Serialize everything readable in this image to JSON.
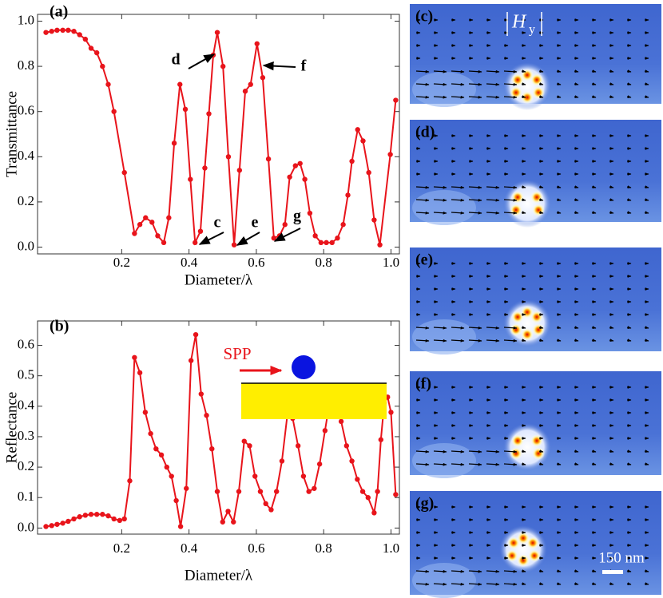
{
  "chart_data": [
    {
      "type": "line",
      "panel_label": "(a)",
      "x_label": "Diameter/λ",
      "y_label": "Transmittance",
      "color": "#e8141b",
      "x": [
        -0.025,
        -0.008,
        0.008,
        0.025,
        0.041,
        0.058,
        0.075,
        0.092,
        0.109,
        0.126,
        0.143,
        0.16,
        0.177,
        0.208,
        0.238,
        0.254,
        0.271,
        0.29,
        0.307,
        0.325,
        0.34,
        0.356,
        0.373,
        0.389,
        0.404,
        0.418,
        0.434,
        0.447,
        0.459,
        0.472,
        0.484,
        0.501,
        0.517,
        0.534,
        0.55,
        0.567,
        0.583,
        0.602,
        0.619,
        0.636,
        0.652,
        0.669,
        0.685,
        0.699,
        0.716,
        0.73,
        0.744,
        0.759,
        0.775,
        0.792,
        0.808,
        0.825,
        0.841,
        0.858,
        0.872,
        0.884,
        0.901,
        0.917,
        0.934,
        0.95,
        0.967,
        0.998,
        1.014
      ],
      "values": [
        0.95,
        0.955,
        0.96,
        0.96,
        0.96,
        0.955,
        0.94,
        0.92,
        0.88,
        0.86,
        0.8,
        0.72,
        0.6,
        0.33,
        0.06,
        0.1,
        0.13,
        0.11,
        0.05,
        0.02,
        0.13,
        0.46,
        0.72,
        0.61,
        0.3,
        0.02,
        0.07,
        0.35,
        0.59,
        0.85,
        0.95,
        0.8,
        0.4,
        0.01,
        0.34,
        0.69,
        0.72,
        0.9,
        0.75,
        0.39,
        0.04,
        0.05,
        0.1,
        0.31,
        0.36,
        0.37,
        0.3,
        0.15,
        0.05,
        0.02,
        0.02,
        0.02,
        0.04,
        0.1,
        0.23,
        0.38,
        0.52,
        0.47,
        0.33,
        0.12,
        0.01,
        0.41,
        0.65
      ],
      "xlim": [
        -0.05,
        1.025
      ],
      "ylim": [
        -0.03,
        1.03
      ],
      "xticks": [
        0.2,
        0.4,
        0.6,
        0.8,
        {
          "value": 1,
          "label": "1.0"
        }
      ],
      "yticks": [
        {
          "value": 0,
          "label": "0.0"
        },
        0.2,
        0.4,
        0.6,
        0.8,
        {
          "value": 1,
          "label": "1.0"
        }
      ],
      "annotations": [
        "d",
        "f",
        "c",
        "e",
        "g"
      ]
    },
    {
      "type": "line",
      "panel_label": "(b)",
      "x_label": "Diameter/λ",
      "y_label": "Reflectance",
      "color": "#e8141b",
      "x": [
        -0.025,
        -0.008,
        0.008,
        0.025,
        0.041,
        0.058,
        0.075,
        0.092,
        0.109,
        0.126,
        0.143,
        0.16,
        0.177,
        0.194,
        0.208,
        0.224,
        0.238,
        0.254,
        0.27,
        0.286,
        0.302,
        0.318,
        0.334,
        0.348,
        0.362,
        0.375,
        0.392,
        0.406,
        0.42,
        0.436,
        0.452,
        0.468,
        0.484,
        0.5,
        0.516,
        0.532,
        0.548,
        0.564,
        0.58,
        0.596,
        0.612,
        0.628,
        0.644,
        0.66,
        0.676,
        0.692,
        0.708,
        0.724,
        0.74,
        0.756,
        0.772,
        0.788,
        0.804,
        0.82,
        0.836,
        0.852,
        0.868,
        0.884,
        0.9,
        0.916,
        0.932,
        0.95,
        0.96,
        0.97,
        0.98,
        0.99,
        1.0,
        1.014
      ],
      "values": [
        0.005,
        0.008,
        0.012,
        0.016,
        0.022,
        0.03,
        0.037,
        0.042,
        0.045,
        0.045,
        0.045,
        0.04,
        0.03,
        0.025,
        0.03,
        0.155,
        0.56,
        0.51,
        0.38,
        0.31,
        0.26,
        0.24,
        0.2,
        0.17,
        0.09,
        0.005,
        0.13,
        0.55,
        0.635,
        0.44,
        0.37,
        0.26,
        0.12,
        0.02,
        0.055,
        0.02,
        0.12,
        0.285,
        0.27,
        0.17,
        0.12,
        0.08,
        0.06,
        0.12,
        0.22,
        0.37,
        0.36,
        0.27,
        0.17,
        0.12,
        0.13,
        0.21,
        0.32,
        0.43,
        0.43,
        0.35,
        0.27,
        0.22,
        0.16,
        0.12,
        0.1,
        0.05,
        0.12,
        0.29,
        0.41,
        0.43,
        0.38,
        0.11
      ],
      "xlim": [
        -0.05,
        1.025
      ],
      "ylim": [
        -0.02,
        0.68
      ],
      "xticks": [
        0.2,
        0.4,
        0.6,
        0.8,
        {
          "value": 1,
          "label": "1.0"
        }
      ],
      "yticks": [
        {
          "value": 0,
          "label": "0.0"
        },
        0.1,
        0.2,
        0.3,
        0.4,
        0.5,
        0.6
      ],
      "annotations": [
        "SPP"
      ]
    }
  ],
  "field_panels": {
    "labels": [
      "(c)",
      "(d)",
      "(e)",
      "(f)",
      "(g)"
    ],
    "field_symbol": "H",
    "field_subscript": "y",
    "scale_bar": "150 nm"
  }
}
